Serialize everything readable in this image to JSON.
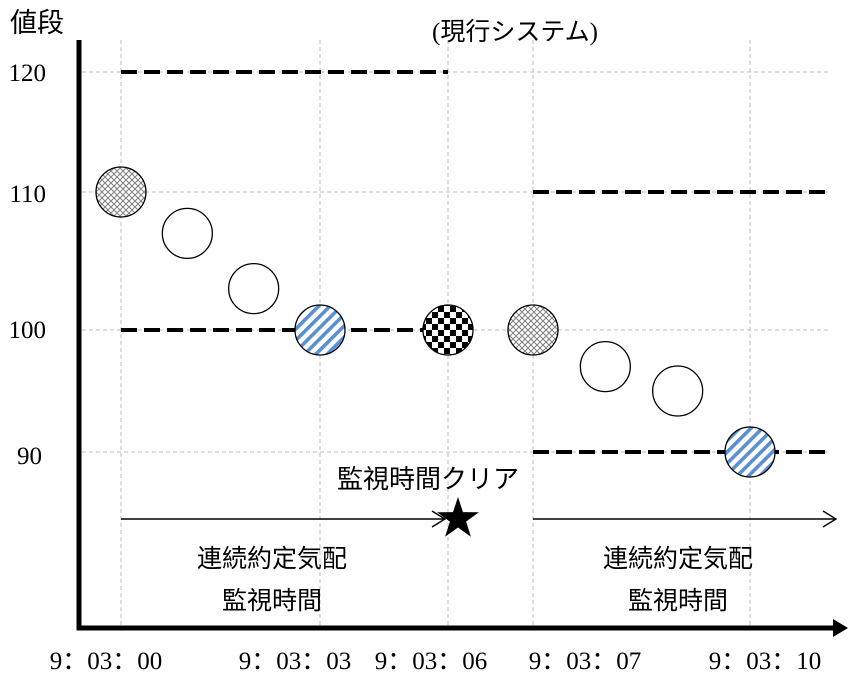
{
  "chart_data": {
    "type": "scatter",
    "title": "(現行システム)",
    "ylabel": "値段",
    "y_ticks": [
      120,
      110,
      100,
      90
    ],
    "x_ticks": [
      "9：03：00",
      "9：03：03",
      "9：03：06",
      "9：03：07",
      "9：03：10"
    ],
    "ylim": [
      76,
      123
    ],
    "grid": true,
    "points": [
      {
        "x": "9：03：00",
        "y": 110,
        "pattern": "crosshatch"
      },
      {
        "x": "9：03：01",
        "y": 107,
        "pattern": "plain"
      },
      {
        "x": "9：03：02",
        "y": 103,
        "pattern": "plain"
      },
      {
        "x": "9：03：03",
        "y": 100,
        "pattern": "blue-stripes"
      },
      {
        "x": "9：03：06",
        "y": 100,
        "pattern": "checkerboard"
      },
      {
        "x": "9：03：07",
        "y": 100,
        "pattern": "crosshatch"
      },
      {
        "x": "9：03：08",
        "y": 97,
        "pattern": "plain"
      },
      {
        "x": "9：03：09",
        "y": 95,
        "pattern": "plain"
      },
      {
        "x": "9：03：10",
        "y": 90,
        "pattern": "blue-stripes"
      }
    ],
    "dashed_limits": [
      {
        "y": 120,
        "x_from": "9：03：00",
        "x_to": "9：03：06"
      },
      {
        "y": 100,
        "x_from": "9：03：00",
        "x_to": "9：03：06"
      },
      {
        "y": 110,
        "x_from": "9：03：07",
        "x_to": null
      },
      {
        "y": 90,
        "x_from": "9：03：07",
        "x_to": null
      }
    ],
    "periods": [
      {
        "x_from": "9：03：00",
        "x_to": "9：03：06",
        "label_lines": [
          "連続約定気配",
          "監視時間"
        ]
      },
      {
        "x_from": "9：03：07",
        "x_to": null,
        "label_lines": [
          "連続約定気配",
          "監視時間"
        ]
      }
    ],
    "marker": {
      "x": "9：03：06",
      "shape": "star",
      "label": "監視時間クリア"
    },
    "colors": {
      "stripes": "#5a8fd2",
      "hatch": "#7f7f7f",
      "checker": "#000000"
    }
  }
}
